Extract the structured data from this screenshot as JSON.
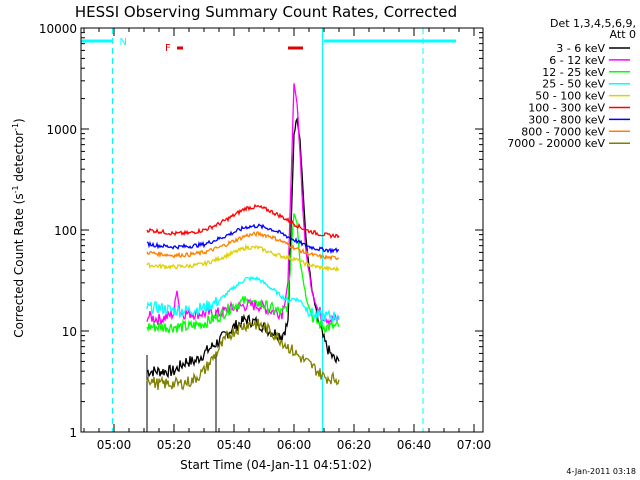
{
  "chart_data": {
    "type": "line",
    "title": "HESSI Observing Summary Count Rates, Corrected",
    "xlabel": "Start Time (04-Jan-11 04:51:02)",
    "ylabel_main": "Corrected Count Rate (s",
    "ylabel_sup1": "-1",
    "ylabel_mid": " detector",
    "ylabel_sup2": "-1",
    "ylabel_end": ")",
    "y_scale": "log",
    "ylim": [
      1,
      10000
    ],
    "xlim_minutes": [
      289,
      423
    ],
    "x_ticks": [
      {
        "label": "05:00",
        "min": 300
      },
      {
        "label": "05:20",
        "min": 320
      },
      {
        "label": "05:40",
        "min": 340
      },
      {
        "label": "06:00",
        "min": 360
      },
      {
        "label": "06:20",
        "min": 380
      },
      {
        "label": "06:40",
        "min": 400
      },
      {
        "label": "07:00",
        "min": 420
      }
    ],
    "y_ticks": [
      {
        "label": "1",
        "value": 1
      },
      {
        "label": "10",
        "value": 10
      },
      {
        "label": "100",
        "value": 100
      },
      {
        "label": "1000",
        "value": 1000
      },
      {
        "label": "10000",
        "value": 10000
      }
    ],
    "legend_header": [
      "Det 1,3,4,5,6,9,",
      "Att 0"
    ],
    "legend_placement": "right",
    "data_window_minutes": [
      311,
      334
    ],
    "night_periods_minutes": [
      [
        289,
        299.5
      ],
      [
        370,
        414
      ]
    ],
    "annotations": [
      {
        "label": "N",
        "color": "#00ffff"
      },
      {
        "label": "F",
        "color": "#e00000"
      }
    ],
    "flag_bars_minutes": [
      [
        321,
        323
      ],
      [
        358,
        363
      ]
    ],
    "vlines_solid_minutes": [
      289,
      369.5
    ],
    "vlines_dashed_minutes": [
      299.5,
      403
    ],
    "series": [
      {
        "name": "3 - 6 keV",
        "color": "#000000",
        "x": [
          311,
          315,
          320,
          324,
          327,
          330,
          335,
          340,
          344,
          348,
          352,
          356,
          358,
          359,
          360,
          361,
          362,
          363,
          364,
          366,
          368,
          370,
          372,
          374,
          375
        ],
        "y": [
          4,
          4,
          4,
          5,
          5,
          6,
          8,
          11,
          13,
          12,
          10,
          9,
          12,
          100,
          900,
          1300,
          800,
          250,
          80,
          25,
          13,
          8,
          6,
          5,
          5
        ]
      },
      {
        "name": "6 - 12 keV",
        "color": "#ff00ff",
        "x": [
          311,
          315,
          318,
          320,
          321,
          322,
          324,
          327,
          330,
          335,
          340,
          344,
          348,
          352,
          356,
          358,
          359,
          360,
          361,
          362,
          363,
          364,
          366,
          368,
          370,
          372,
          375
        ],
        "y": [
          14,
          13,
          14,
          15,
          26,
          15,
          15,
          15,
          15,
          15,
          17,
          18,
          18,
          16,
          15,
          30,
          300,
          2700,
          1800,
          600,
          150,
          60,
          25,
          16,
          14,
          13,
          13
        ]
      },
      {
        "name": "12 - 25 keV",
        "color": "#00ff00",
        "x": [
          311,
          315,
          320,
          325,
          330,
          335,
          340,
          344,
          348,
          352,
          356,
          358,
          359,
          360,
          361,
          362,
          364,
          366,
          368,
          370,
          372,
          375
        ],
        "y": [
          11,
          11,
          11,
          11,
          12,
          14,
          18,
          20,
          19,
          17,
          15,
          18,
          60,
          150,
          120,
          50,
          22,
          14,
          12,
          11,
          11,
          11
        ]
      },
      {
        "name": "25 - 50 keV",
        "color": "#00ffff",
        "x": [
          311,
          315,
          320,
          325,
          330,
          335,
          340,
          344,
          348,
          352,
          356,
          358,
          360,
          362,
          364,
          366,
          368,
          370,
          372,
          375
        ],
        "y": [
          17,
          17,
          16,
          16,
          17,
          20,
          27,
          33,
          33,
          27,
          22,
          20,
          21,
          20,
          17,
          15,
          14,
          14,
          14,
          14
        ]
      },
      {
        "name": "50 - 100 keV",
        "color": "#e0d000",
        "x": [
          311,
          315,
          320,
          325,
          330,
          335,
          340,
          344,
          348,
          352,
          356,
          360,
          364,
          368,
          372,
          375
        ],
        "y": [
          45,
          44,
          43,
          44,
          46,
          52,
          60,
          67,
          67,
          60,
          55,
          52,
          46,
          43,
          41,
          41
        ]
      },
      {
        "name": "100 - 300 keV",
        "color": "#ff0000",
        "x": [
          311,
          315,
          320,
          325,
          330,
          335,
          340,
          344,
          348,
          352,
          356,
          360,
          364,
          368,
          372,
          375
        ],
        "y": [
          100,
          97,
          92,
          93,
          100,
          115,
          140,
          165,
          170,
          155,
          135,
          115,
          100,
          92,
          88,
          88
        ]
      },
      {
        "name": "300 - 800 keV",
        "color": "#0000ff",
        "x": [
          311,
          315,
          320,
          325,
          330,
          335,
          340,
          344,
          348,
          352,
          356,
          360,
          364,
          368,
          372,
          375
        ],
        "y": [
          73,
          70,
          68,
          69,
          72,
          82,
          95,
          107,
          110,
          103,
          92,
          80,
          70,
          65,
          63,
          63
        ]
      },
      {
        "name": "800 - 7000 keV",
        "color": "#ff8000",
        "x": [
          311,
          315,
          320,
          325,
          330,
          335,
          340,
          344,
          348,
          352,
          356,
          360,
          364,
          368,
          372,
          375
        ],
        "y": [
          60,
          58,
          56,
          57,
          60,
          67,
          78,
          88,
          92,
          87,
          77,
          67,
          59,
          55,
          53,
          53
        ]
      },
      {
        "name": "7000 - 20000 keV",
        "color": "#808000",
        "x": [
          311,
          314,
          318,
          322,
          326,
          330,
          334,
          338,
          342,
          346,
          350,
          354,
          358,
          362,
          366,
          370,
          375
        ],
        "y": [
          3.5,
          3,
          3,
          3,
          3.2,
          4,
          6,
          9,
          11,
          12,
          11,
          9,
          7,
          5.5,
          4.5,
          3.5,
          3.3
        ]
      }
    ]
  },
  "footer": {
    "timestamp": "4-Jan-2011 03:18"
  }
}
